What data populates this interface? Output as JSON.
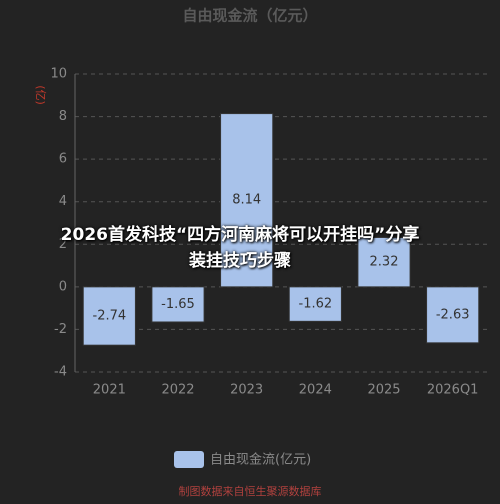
{
  "chart_data": {
    "type": "bar",
    "title": "自由现金流（亿元）",
    "y_label": "(亿)",
    "categories": [
      "2021",
      "2022",
      "2023",
      "2024",
      "2025",
      "2026Q1"
    ],
    "series": [
      {
        "name": "自由现金流(亿元)",
        "color": "#a8c2ea",
        "values": [
          -2.74,
          -1.65,
          8.14,
          -1.62,
          2.32,
          -2.63
        ]
      }
    ],
    "ylim": [
      -4,
      10
    ],
    "yticks": [
      -4,
      -2,
      0,
      2,
      4,
      6,
      8,
      10
    ],
    "grid": true,
    "source": "制图数据来自恒生聚源数据库",
    "overlay": "2026首发科技“四方河南麻将可以开挂吗”分享装挂技巧步骤"
  }
}
